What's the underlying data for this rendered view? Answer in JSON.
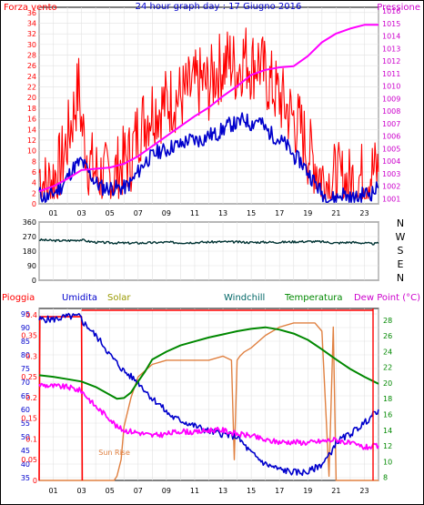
{
  "chart_data": [
    {
      "type": "line",
      "title": "24 hour graph day : 17 Giugno 2016",
      "left_label": "Forza vento",
      "right_label": "Pressione",
      "x_ticks": [
        "01",
        "03",
        "05",
        "07",
        "09",
        "11",
        "13",
        "15",
        "17",
        "19",
        "21",
        "23"
      ],
      "y_left_ticks": [
        "0",
        "2",
        "4",
        "6",
        "8",
        "10",
        "12",
        "14",
        "16",
        "18",
        "20",
        "22",
        "24",
        "26",
        "28",
        "30",
        "32",
        "34",
        "36"
      ],
      "y_right_ticks": [
        "1001",
        "1002",
        "1003",
        "1004",
        "1005",
        "1006",
        "1007",
        "1008",
        "1009",
        "1010",
        "1011",
        "1012",
        "1013",
        "1014",
        "1015",
        "1016"
      ],
      "ylim_left": [
        0,
        37
      ],
      "ylim_right": [
        1000.6,
        1016.3
      ],
      "colors": {
        "gust": "#ff0000",
        "wind": "#0000cc",
        "pressure": "#ff00ff"
      },
      "series": [
        {
          "key": "gust",
          "x": [
            0,
            0.5,
            1,
            1.5,
            2,
            2.5,
            2.8,
            3,
            3.5,
            4,
            4.5,
            5,
            5.5,
            6,
            6.5,
            7,
            7.5,
            8,
            8.5,
            9,
            9.5,
            10,
            10.5,
            11,
            11.5,
            12,
            12.5,
            13,
            13.5,
            14,
            14.5,
            15,
            15.5,
            16,
            16.5,
            17,
            17.5,
            18,
            18.5,
            19,
            19.5,
            20,
            20.5,
            21,
            21.5,
            22,
            22.5,
            23,
            23.5,
            24
          ],
          "y": [
            6,
            3,
            5,
            7,
            12,
            18,
            22,
            15,
            8,
            6,
            5,
            5,
            6,
            8,
            9,
            14,
            16,
            18,
            18,
            19,
            20,
            20,
            21,
            22,
            23,
            22,
            25,
            26,
            27,
            25,
            28,
            26,
            27,
            24,
            22,
            20,
            18,
            16,
            14,
            10,
            8,
            5,
            4,
            5,
            4,
            4,
            5,
            5,
            6,
            6
          ]
        },
        {
          "key": "wind",
          "x": [
            0,
            0.5,
            1,
            1.5,
            2,
            2.5,
            3,
            3.5,
            4,
            4.5,
            5,
            5.5,
            6,
            6.5,
            7,
            7.5,
            8,
            8.5,
            9,
            9.5,
            10,
            10.5,
            11,
            11.5,
            12,
            12.5,
            13,
            13.5,
            14,
            14.5,
            15,
            15.5,
            16,
            16.5,
            17,
            17.5,
            18,
            18.5,
            19,
            19.5,
            20,
            20.5,
            21,
            21.5,
            22,
            22.5,
            23,
            23.5,
            24
          ],
          "y": [
            2,
            1,
            2,
            3,
            5,
            7,
            8,
            6,
            4,
            3,
            3,
            3,
            3,
            4,
            6,
            8,
            9,
            10,
            10,
            11,
            11,
            12,
            12,
            12,
            13,
            13,
            14,
            15,
            15,
            16,
            15,
            16,
            14,
            13,
            12,
            11,
            9,
            8,
            6,
            4,
            2,
            1,
            1,
            2,
            1,
            1,
            2,
            2,
            3
          ]
        },
        {
          "key": "pressure",
          "x": [
            0,
            1,
            2,
            3,
            4,
            5,
            6,
            7,
            8,
            9,
            10,
            11,
            12,
            13,
            14,
            15,
            16,
            17,
            18,
            19,
            20,
            21,
            22,
            23,
            24
          ],
          "y": [
            1001.6,
            1002,
            1002.6,
            1003.3,
            1003.4,
            1003.5,
            1003.8,
            1004.4,
            1005.2,
            1006,
            1006.8,
            1007.6,
            1008.3,
            1009.2,
            1010,
            1010.9,
            1011.3,
            1011.5,
            1011.6,
            1012.4,
            1013.5,
            1014.2,
            1014.6,
            1014.9,
            1014.9
          ]
        }
      ]
    },
    {
      "type": "line",
      "title": "",
      "x_ticks": [
        "01",
        "03",
        "05",
        "07",
        "09",
        "11",
        "13",
        "15",
        "17",
        "19",
        "21",
        "23"
      ],
      "y_ticks": [
        "0",
        "90",
        "180",
        "270",
        "360"
      ],
      "direction_labels": [
        "N",
        "W",
        "S",
        "E",
        "N"
      ],
      "ylim": [
        0,
        360
      ],
      "colors": {
        "direction": "#003333"
      },
      "series": [
        {
          "key": "direction",
          "x": [
            0,
            1,
            2,
            3,
            3.5,
            4,
            5,
            6,
            7,
            8,
            9,
            10,
            11,
            12,
            13,
            14,
            15,
            16,
            17,
            18,
            19,
            20,
            21,
            22,
            23,
            23.5,
            24
          ],
          "y": [
            250,
            245,
            245,
            250,
            240,
            235,
            232,
            230,
            230,
            232,
            235,
            232,
            234,
            236,
            238,
            236,
            234,
            236,
            235,
            238,
            240,
            238,
            230,
            235,
            230,
            225,
            228
          ]
        }
      ]
    },
    {
      "type": "line",
      "labels": [
        "Pioggia",
        "Umidita",
        "Solar",
        "Windchill",
        "Temperatura",
        "Dew Point (°C)"
      ],
      "annotation": "Sun Rise",
      "x_ticks": [
        "01",
        "03",
        "05",
        "07",
        "09",
        "11",
        "13",
        "15",
        "17",
        "19",
        "21",
        "23"
      ],
      "left_outer_ticks": [
        "0",
        "0.05",
        "0.1",
        "0.15",
        "0.2",
        "0.25",
        "0.3",
        "0.35",
        "0.4"
      ],
      "left_inner_ticks": [
        "35",
        "40",
        "45",
        "50",
        "55",
        "60",
        "65",
        "70",
        "75",
        "80",
        "85",
        "90",
        "95"
      ],
      "right_ticks": [
        "8",
        "10",
        "12",
        "14",
        "16",
        "18",
        "20",
        "22",
        "24",
        "26",
        "28"
      ],
      "ylim_humidity": [
        34,
        97
      ],
      "ylim_temperature": [
        7.6,
        29.5
      ],
      "colors": {
        "rain": "#ff0000",
        "humidity": "#0000cc",
        "temperature": "#008800",
        "dewpoint": "#ff00ff",
        "solar": "#e08040"
      },
      "series": [
        {
          "key": "humidity",
          "x": [
            0,
            1,
            2,
            2.9,
            3.1,
            3.5,
            4,
            4.5,
            5,
            5.5,
            6,
            6.5,
            7,
            7.5,
            8,
            8.5,
            9,
            9.5,
            10,
            11,
            12,
            13,
            14,
            15,
            16,
            17,
            18,
            19,
            20,
            20.5,
            21,
            22,
            23,
            24
          ],
          "y": [
            93,
            93,
            94,
            94,
            92,
            90,
            87,
            84,
            80,
            77,
            74,
            72,
            70,
            67,
            64,
            62,
            59,
            57,
            56,
            54,
            52,
            51,
            50,
            44,
            40,
            38,
            37,
            37,
            40,
            43,
            48,
            51,
            55,
            60
          ]
        },
        {
          "key": "temperature",
          "x": [
            0,
            1,
            2,
            3,
            4,
            5,
            5.5,
            6,
            6.5,
            7,
            7.5,
            8,
            9,
            10,
            11,
            12,
            13,
            14,
            15,
            16,
            17,
            18,
            19,
            20,
            21,
            22,
            23,
            24
          ],
          "y": [
            21,
            20.8,
            20.5,
            20.2,
            19.5,
            18.5,
            18,
            18.1,
            18.8,
            20.2,
            21.5,
            23,
            24,
            24.8,
            25.3,
            25.8,
            26.2,
            26.6,
            26.9,
            27.1,
            26.8,
            26.3,
            25.5,
            24.3,
            23,
            21.8,
            20.8,
            19.9
          ]
        },
        {
          "key": "dewpoint",
          "x": [
            0,
            1,
            2,
            3,
            4,
            5,
            5.5,
            6,
            7,
            8,
            9,
            10,
            11,
            12,
            13,
            14,
            15,
            16,
            17,
            18,
            19,
            20,
            21,
            22,
            23,
            24
          ],
          "y": [
            19.8,
            19.6,
            19.5,
            19,
            17,
            15.5,
            14.4,
            14,
            13.7,
            13.3,
            13.5,
            13.9,
            13.7,
            14,
            14,
            13.5,
            13.3,
            12.7,
            12.5,
            12.5,
            12.4,
            12.6,
            12.8,
            12.3,
            11.8,
            12
          ]
        },
        {
          "key": "solar",
          "x": [
            0,
            1,
            2,
            3,
            4,
            5,
            5.3,
            5.5,
            5.8,
            6,
            6.5,
            7,
            8,
            9,
            10,
            11,
            12,
            13,
            13.6,
            13.8,
            14,
            14.2,
            14.5,
            15,
            16,
            17,
            18,
            19,
            19.5,
            20,
            20.3,
            20.5,
            20.8,
            21,
            21.5,
            22,
            23,
            24
          ],
          "y": [
            0,
            0,
            0,
            0,
            0,
            0,
            0,
            0.01,
            0.05,
            0.13,
            0.2,
            0.25,
            0.28,
            0.29,
            0.29,
            0.29,
            0.29,
            0.3,
            0.29,
            0.05,
            0.29,
            0.3,
            0.31,
            0.32,
            0.35,
            0.37,
            0.38,
            0.38,
            0.38,
            0.36,
            0.15,
            0.01,
            0.37,
            0,
            0,
            0,
            0,
            0
          ]
        },
        {
          "key": "rain",
          "x": [
            0,
            0.05,
            3,
            3.05
          ],
          "y": [
            0,
            0.395,
            0.395,
            0
          ]
        }
      ]
    }
  ]
}
